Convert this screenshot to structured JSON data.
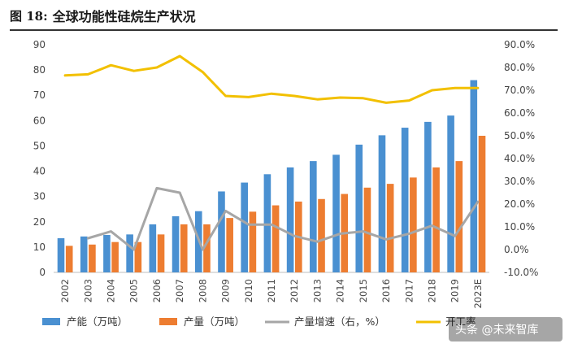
{
  "header": {
    "prefix": "图  18:",
    "title": "全球功能性硅烷生产状况"
  },
  "watermark": "头条 @未来智库",
  "colors": {
    "capacity": "#4a90d1",
    "production": "#ed7d31",
    "growth": "#a6a6a6",
    "utilization": "#f2c000"
  },
  "chart_data": {
    "type": "bar",
    "title": "全球功能性硅烷生产状况",
    "categories": [
      "2002",
      "2003",
      "2004",
      "2005",
      "2006",
      "2007",
      "2008",
      "2009",
      "2010",
      "2011",
      "2012",
      "2013",
      "2014",
      "2015",
      "2016",
      "2017",
      "2018",
      "2019",
      "2023E"
    ],
    "ylim_left": [
      0,
      90
    ],
    "ylim_right": [
      -10,
      90
    ],
    "yticks_left": [
      "0",
      "10",
      "20",
      "30",
      "40",
      "50",
      "60",
      "70",
      "80",
      "90"
    ],
    "yticks_right": [
      "-10.0%",
      "0.0%",
      "10.0%",
      "20.0%",
      "30.0%",
      "40.0%",
      "50.0%",
      "60.0%",
      "70.0%",
      "80.0%",
      "90.0%"
    ],
    "series": [
      {
        "name": "产能（万吨）",
        "type": "bar",
        "axis": "left",
        "values": [
          13.5,
          14.2,
          14.8,
          15.0,
          19.0,
          22.2,
          24.2,
          32.0,
          35.5,
          38.8,
          41.5,
          44.0,
          46.5,
          50.5,
          54.2,
          57.2,
          59.5,
          62.0,
          76.0
        ]
      },
      {
        "name": "产量（万吨）",
        "type": "bar",
        "axis": "left",
        "values": [
          10.5,
          11.0,
          12.0,
          12.0,
          15.0,
          19.0,
          19.0,
          21.5,
          24.0,
          26.5,
          28.0,
          29.0,
          31.0,
          33.5,
          35.0,
          37.5,
          41.5,
          44.0,
          54.0
        ]
      },
      {
        "name": "产量增速（右，%）",
        "type": "line",
        "axis": "right",
        "values": [
          null,
          5.0,
          8.0,
          0.0,
          27.0,
          25.0,
          0.0,
          17.0,
          11.0,
          11.0,
          6.0,
          3.5,
          7.0,
          8.0,
          4.5,
          7.0,
          10.5,
          6.0,
          21.0
        ]
      },
      {
        "name": "开工率",
        "type": "line",
        "axis": "right",
        "values": [
          76.5,
          77.0,
          81.0,
          78.5,
          80.0,
          85.0,
          78.0,
          67.5,
          67.0,
          68.5,
          67.5,
          66.0,
          66.8,
          66.5,
          64.5,
          65.5,
          70.0,
          71.0,
          71.0
        ]
      }
    ],
    "grid": false,
    "legend": "bottom"
  }
}
